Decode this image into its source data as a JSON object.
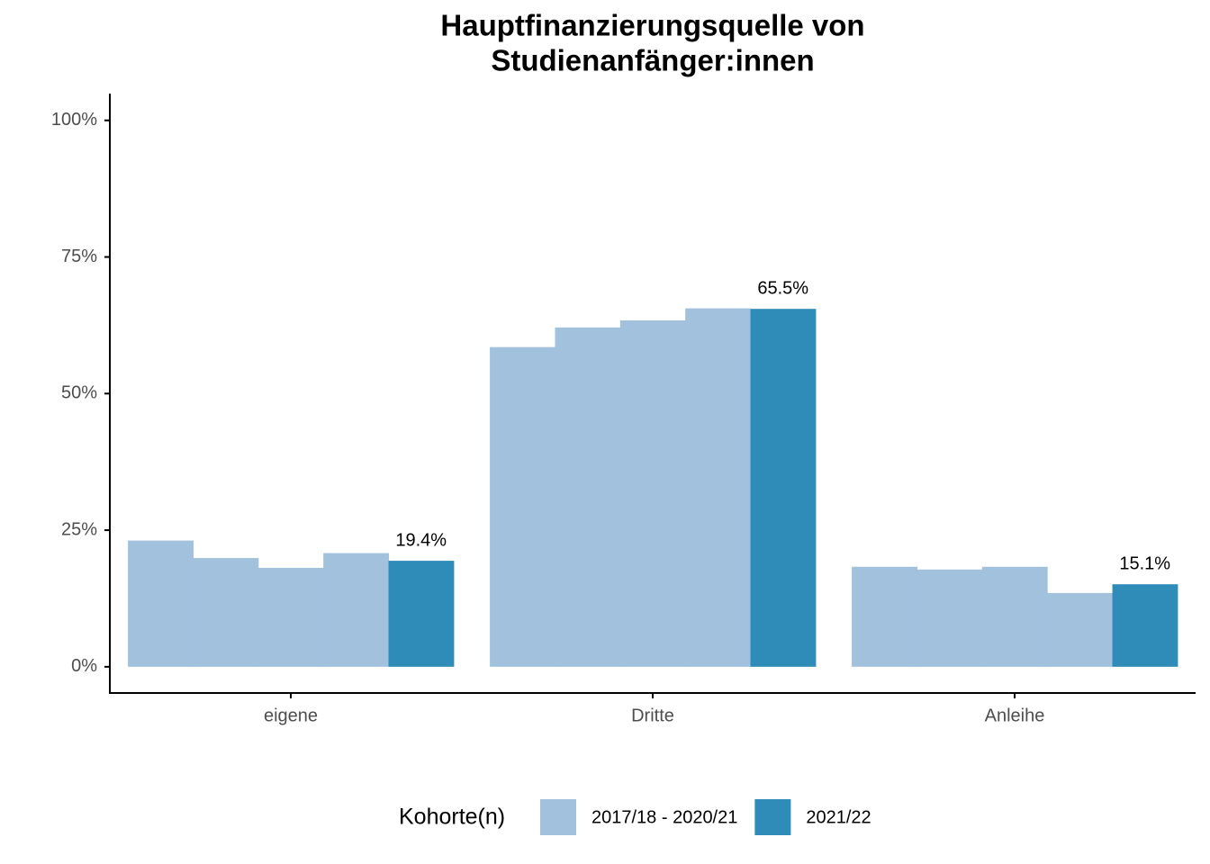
{
  "chart_data": {
    "type": "bar",
    "title": [
      "Hauptfinanzierungsquelle von",
      "Studienanfänger:innen"
    ],
    "categories": [
      "eigene",
      "Dritte",
      "Anleihe"
    ],
    "series": [
      {
        "name": "2017/18 - 2020/21",
        "color": "#a1c1dd",
        "values": [
          [
            23.1,
            19.9,
            18.1,
            20.8
          ],
          [
            58.5,
            62.1,
            63.4,
            65.6
          ],
          [
            18.3,
            17.8,
            18.3,
            13.5
          ]
        ]
      },
      {
        "name": "2021/22",
        "color": "#2f8bb7",
        "values": [
          19.4,
          65.5,
          15.1
        ],
        "value_labels": [
          "19.4%",
          "65.5%",
          "15.1%"
        ]
      }
    ],
    "legend_title": "Kohorte(n)",
    "legend_position": "bottom",
    "ylim": [
      -4.8,
      104.9
    ],
    "yticks": [
      {
        "value": 0,
        "label": "0%"
      },
      {
        "value": 25,
        "label": "25%"
      },
      {
        "value": 50,
        "label": "50%"
      },
      {
        "value": 75,
        "label": "75%"
      },
      {
        "value": 100,
        "label": "100%"
      }
    ],
    "grid": false
  }
}
